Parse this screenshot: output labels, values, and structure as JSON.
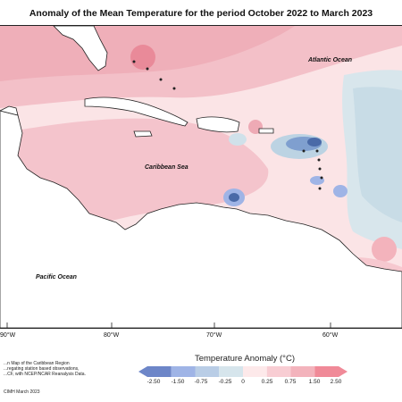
{
  "title": "Anomaly of the Mean Temperature for the period October 2022 to March 2023",
  "labels": {
    "atlantic": "Atlantic Ocean",
    "caribbean": "Caribbean Sea",
    "pacific": "Pacific Ocean"
  },
  "lon_ticks": [
    "90°W",
    "80°W",
    "70°W",
    "60°W"
  ],
  "notes": [
    "...n Map of the Caribbean Region",
    "...regating station based observations,",
    "...CF, with NCEP/NCAR Reanalysis Data.",
    "CIMH March 2023"
  ],
  "legend": {
    "title": "Temperature Anomaly (°C)",
    "ticks": [
      "-2.50",
      "-1.50",
      "-0.75",
      "-0.25",
      "0",
      "0.25",
      "0.75",
      "1.50",
      "2.50"
    ],
    "colors": [
      "#6d86c8",
      "#9fb4e6",
      "#b9cde6",
      "#d6e5ec",
      "#fde9ea",
      "#f8cdd3",
      "#f3b3bc",
      "#f08a98"
    ]
  },
  "colors": {
    "land": "#ffffff",
    "slight_warm": "#fbe4e6",
    "warm": "#f6c8cf",
    "warmer": "#eeaab5",
    "hot": "#e98a99",
    "slight_cool": "#d8e6ec",
    "cool": "#bcd3e3",
    "colder": "#7f9fcf",
    "coldest": "#4a6aa8"
  }
}
